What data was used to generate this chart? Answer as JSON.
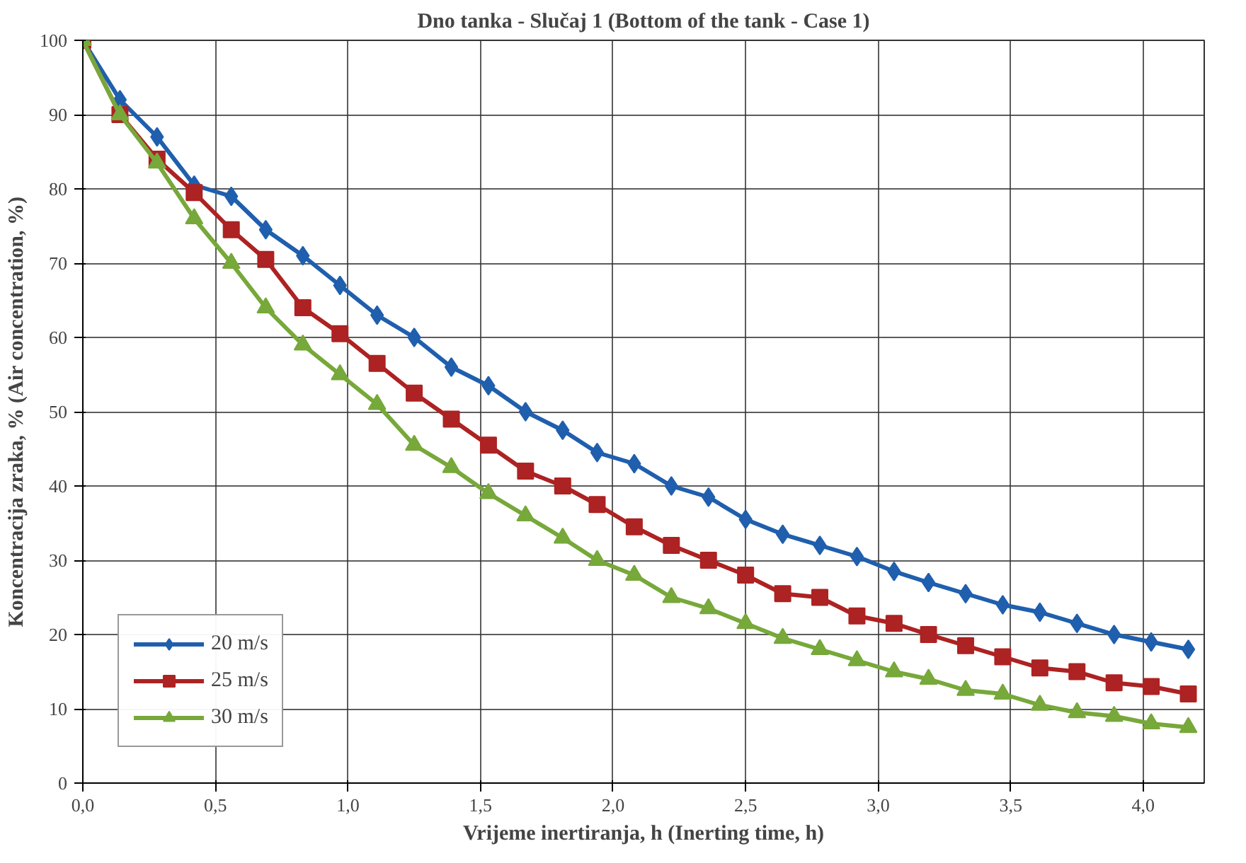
{
  "chart_data": {
    "type": "line",
    "title": "Dno tanka - Slučaj 1 (Bottom of the tank - Case 1)",
    "xlabel": "Vrijeme inertiranja, h (Inerting time, h)",
    "ylabel": "Koncentracija zraka, % (Air concentration, %)",
    "x": [
      0,
      0.14,
      0.28,
      0.42,
      0.56,
      0.69,
      0.83,
      0.97,
      1.11,
      1.25,
      1.39,
      1.53,
      1.67,
      1.81,
      1.94,
      2.08,
      2.22,
      2.36,
      2.5,
      2.64,
      2.78,
      2.92,
      3.06,
      3.19,
      3.33,
      3.47,
      3.61,
      3.75,
      3.89,
      4.03,
      4.17
    ],
    "series": [
      {
        "name": "20 m/s",
        "color": "#1f5fad",
        "marker": "diamond",
        "values": [
          100,
          92,
          87,
          80.5,
          79,
          74.5,
          71,
          67,
          63,
          60,
          56,
          53.5,
          50,
          47.5,
          44.5,
          43,
          40,
          38.5,
          35.5,
          33.5,
          32,
          30.5,
          28.5,
          27,
          25.5,
          24,
          23,
          21.5,
          20,
          19,
          18
        ]
      },
      {
        "name": "25 m/s",
        "color": "#ad2222",
        "marker": "square",
        "values": [
          100,
          90,
          84,
          79.5,
          74.5,
          70.5,
          64,
          60.5,
          56.5,
          52.5,
          49,
          45.5,
          42,
          40,
          37.5,
          34.5,
          32,
          30,
          28,
          25.5,
          25,
          22.5,
          21.5,
          20,
          18.5,
          17,
          15.5,
          15,
          13.5,
          13,
          12
        ]
      },
      {
        "name": "30 m/s",
        "color": "#77a83a",
        "marker": "triangle",
        "values": [
          100,
          90,
          83.5,
          76,
          70,
          64,
          59,
          55,
          51,
          45.5,
          42.5,
          39,
          36,
          33,
          30,
          28,
          25,
          23.5,
          21.5,
          19.5,
          18,
          16.5,
          15,
          14,
          12.5,
          12,
          10.5,
          9.5,
          9,
          8,
          7.5
        ]
      }
    ],
    "xlim": [
      0,
      4.23
    ],
    "xticks": [
      {
        "value": 0,
        "label": "0,0"
      },
      {
        "value": 0.5,
        "label": "0,5"
      },
      {
        "value": 1,
        "label": "1,0"
      },
      {
        "value": 1.5,
        "label": "1,5"
      },
      {
        "value": 2,
        "label": "2,0"
      },
      {
        "value": 2.5,
        "label": "2,5"
      },
      {
        "value": 3,
        "label": "3,0"
      },
      {
        "value": 3.5,
        "label": "3,5"
      },
      {
        "value": 4,
        "label": "4,0"
      }
    ],
    "ylim": [
      0,
      100
    ],
    "yticks": [
      0,
      10,
      20,
      30,
      40,
      50,
      60,
      70,
      80,
      90,
      100
    ],
    "grid": true,
    "legend": "bottom left",
    "line_style": "solid"
  }
}
